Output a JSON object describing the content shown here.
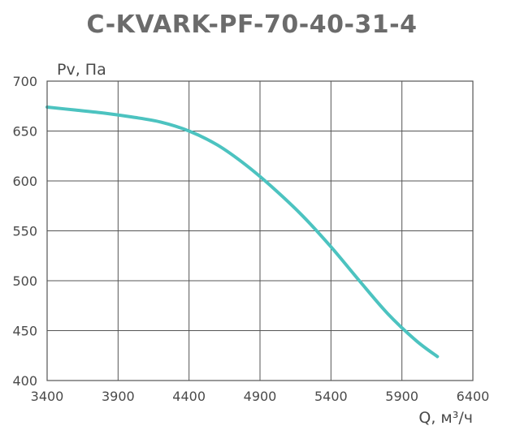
{
  "chart_data": {
    "type": "line",
    "title": "C-KVARK-PF-70-40-31-4",
    "xlabel": "Q, м³/ч",
    "ylabel": "Pv, Па",
    "xlim": [
      3400,
      6400
    ],
    "ylim": [
      400,
      700
    ],
    "x_ticks": [
      3400,
      3900,
      4400,
      4900,
      5400,
      5900,
      6400
    ],
    "y_ticks": [
      400,
      450,
      500,
      550,
      600,
      650,
      700
    ],
    "grid": true,
    "series": [
      {
        "color": "#4cc3c0",
        "x": [
          3400,
          3600,
          3800,
          4000,
          4200,
          4400,
          4600,
          4800,
          5000,
          5200,
          5400,
          5600,
          5800,
          6000,
          6150
        ],
        "y": [
          674,
          671,
          668,
          664,
          659,
          650,
          636,
          616,
          592,
          565,
          534,
          500,
          467,
          440,
          424
        ]
      }
    ]
  }
}
